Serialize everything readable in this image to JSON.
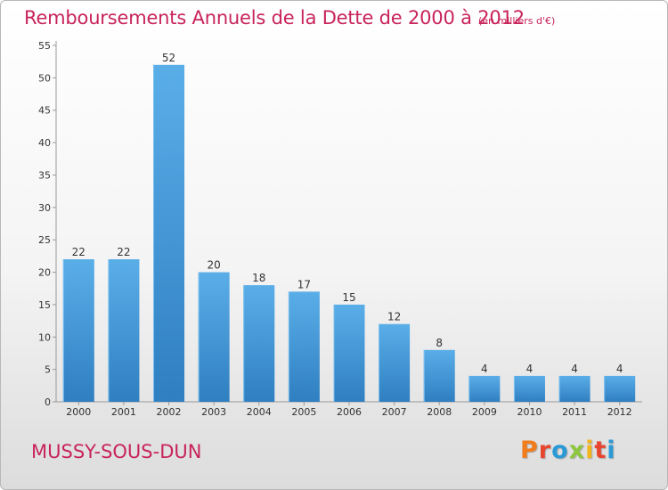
{
  "header": {
    "title": "Remboursements Annuels de la Dette de 2000 à 2012",
    "unit": "(en milliers d'€)"
  },
  "footer": {
    "city": "MUSSY-SOUS-DUN",
    "logo": "Proxiti"
  },
  "colors": {
    "title": "#c8245a",
    "bar_light": "#5aaee8",
    "bar_dark": "#2f7fc1",
    "logo_letters": [
      "#f07c1c",
      "#e8442e",
      "#2a9ad6",
      "#8dc63f",
      "#f2b51c",
      "#e8442e",
      "#2a9ad6"
    ]
  },
  "chart_data": {
    "type": "bar",
    "title": "Remboursements Annuels de la Dette de 2000 à 2012",
    "xlabel": "",
    "ylabel": "",
    "categories": [
      "2000",
      "2001",
      "2002",
      "2003",
      "2004",
      "2005",
      "2006",
      "2007",
      "2008",
      "2009",
      "2010",
      "2011",
      "2012"
    ],
    "values": [
      22,
      22,
      52,
      20,
      18,
      17,
      15,
      12,
      8,
      4,
      4,
      4,
      4
    ],
    "ylim": [
      0,
      55
    ],
    "yticks": [
      0,
      5,
      10,
      15,
      20,
      25,
      30,
      35,
      40,
      45,
      50,
      55
    ],
    "grid": false,
    "data_labels": true
  }
}
